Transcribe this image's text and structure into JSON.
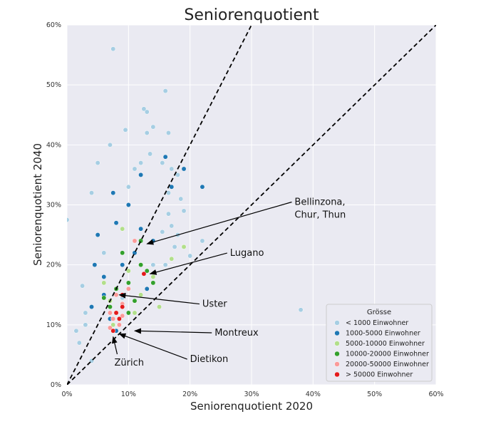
{
  "chart_data": {
    "type": "scatter",
    "title": "Seniorenquotient",
    "xlabel": "Seniorenquotient 2020",
    "ylabel": "Seniorenquotient 2040",
    "xlim": [
      0,
      0.6
    ],
    "ylim": [
      0,
      0.6
    ],
    "x_ticks": [
      "0%",
      "10%",
      "20%",
      "30%",
      "40%",
      "50%",
      "60%"
    ],
    "y_ticks": [
      "0%",
      "10%",
      "20%",
      "30%",
      "40%",
      "50%",
      "60%"
    ],
    "grid": true,
    "legend_position": "bottom-right",
    "legend_title": "Grösse",
    "reference_lines": [
      {
        "style": "dashed",
        "slope": 1
      },
      {
        "style": "dashed",
        "slope": 2
      }
    ],
    "series": [
      {
        "name": "< 1000 Einwohner",
        "color": "#a6cee3",
        "points": [
          [
            0.075,
            0.56
          ],
          [
            0.16,
            0.49
          ],
          [
            0.125,
            0.46
          ],
          [
            0.13,
            0.455
          ],
          [
            0.095,
            0.425
          ],
          [
            0.14,
            0.43
          ],
          [
            0.13,
            0.42
          ],
          [
            0.165,
            0.42
          ],
          [
            0.07,
            0.4
          ],
          [
            0.05,
            0.37
          ],
          [
            0.12,
            0.37
          ],
          [
            0.135,
            0.385
          ],
          [
            0.155,
            0.37
          ],
          [
            0.11,
            0.36
          ],
          [
            0.17,
            0.36
          ],
          [
            0.18,
            0.35
          ],
          [
            0.04,
            0.32
          ],
          [
            0.165,
            0.32
          ],
          [
            0.185,
            0.31
          ],
          [
            0.0,
            0.275
          ],
          [
            0.19,
            0.29
          ],
          [
            0.165,
            0.285
          ],
          [
            0.17,
            0.265
          ],
          [
            0.155,
            0.255
          ],
          [
            0.18,
            0.25
          ],
          [
            0.175,
            0.23
          ],
          [
            0.14,
            0.2
          ],
          [
            0.16,
            0.2
          ],
          [
            0.2,
            0.215
          ],
          [
            0.025,
            0.165
          ],
          [
            0.03,
            0.12
          ],
          [
            0.03,
            0.1
          ],
          [
            0.015,
            0.09
          ],
          [
            0.02,
            0.07
          ],
          [
            0.04,
            0.04
          ],
          [
            0.38,
            0.125
          ],
          [
            0.22,
            0.24
          ],
          [
            0.09,
            0.145
          ],
          [
            0.06,
            0.22
          ],
          [
            0.1,
            0.33
          ]
        ]
      },
      {
        "name": "1000-5000 Einwohner",
        "color": "#1f78b4",
        "points": [
          [
            0.22,
            0.33
          ],
          [
            0.17,
            0.33
          ],
          [
            0.19,
            0.36
          ],
          [
            0.16,
            0.38
          ],
          [
            0.12,
            0.35
          ],
          [
            0.075,
            0.32
          ],
          [
            0.05,
            0.25
          ],
          [
            0.045,
            0.2
          ],
          [
            0.06,
            0.15
          ],
          [
            0.07,
            0.11
          ],
          [
            0.08,
            0.09
          ],
          [
            0.1,
            0.3
          ],
          [
            0.12,
            0.26
          ],
          [
            0.14,
            0.24
          ],
          [
            0.09,
            0.2
          ],
          [
            0.06,
            0.18
          ],
          [
            0.04,
            0.13
          ],
          [
            0.08,
            0.27
          ],
          [
            0.11,
            0.22
          ],
          [
            0.13,
            0.16
          ]
        ]
      },
      {
        "name": "5000-10000 Einwohner",
        "color": "#b2df8a",
        "points": [
          [
            0.19,
            0.23
          ],
          [
            0.17,
            0.21
          ],
          [
            0.12,
            0.15
          ],
          [
            0.08,
            0.12
          ],
          [
            0.07,
            0.14
          ],
          [
            0.1,
            0.19
          ],
          [
            0.14,
            0.18
          ],
          [
            0.06,
            0.17
          ],
          [
            0.11,
            0.12
          ],
          [
            0.09,
            0.26
          ],
          [
            0.075,
            0.1
          ],
          [
            0.15,
            0.13
          ]
        ]
      },
      {
        "name": "10000-20000 Einwohner",
        "color": "#33a02c",
        "points": [
          [
            0.12,
            0.2
          ],
          [
            0.1,
            0.17
          ],
          [
            0.09,
            0.15
          ],
          [
            0.07,
            0.13
          ],
          [
            0.11,
            0.14
          ],
          [
            0.13,
            0.19
          ],
          [
            0.08,
            0.16
          ],
          [
            0.06,
            0.145
          ],
          [
            0.1,
            0.12
          ],
          [
            0.14,
            0.17
          ],
          [
            0.12,
            0.24
          ],
          [
            0.09,
            0.22
          ]
        ]
      },
      {
        "name": "20000-50000 Einwohner",
        "color": "#fb9a99",
        "points": [
          [
            0.08,
            0.15
          ],
          [
            0.07,
            0.12
          ],
          [
            0.09,
            0.135
          ],
          [
            0.075,
            0.11
          ],
          [
            0.085,
            0.1
          ],
          [
            0.11,
            0.24
          ],
          [
            0.1,
            0.16
          ],
          [
            0.07,
            0.095
          ],
          [
            0.09,
            0.115
          ]
        ]
      },
      {
        "name": "> 50000 Einwohner",
        "color": "#e31a1c",
        "points": [
          [
            0.125,
            0.185
          ],
          [
            0.09,
            0.15
          ],
          [
            0.08,
            0.12
          ],
          [
            0.085,
            0.11
          ],
          [
            0.075,
            0.09
          ],
          [
            0.09,
            0.13
          ]
        ]
      }
    ],
    "annotations": [
      {
        "lines": [
          "Bellinzona,",
          "Chur, Thun"
        ],
        "target": [
          0.13,
          0.235
        ],
        "text_at": [
          0.37,
          0.3
        ]
      },
      {
        "lines": [
          "Lugano"
        ],
        "target": [
          0.135,
          0.185
        ],
        "text_at": [
          0.265,
          0.215
        ]
      },
      {
        "lines": [
          "Uster"
        ],
        "target": [
          0.085,
          0.15
        ],
        "text_at": [
          0.22,
          0.13
        ]
      },
      {
        "lines": [
          "Montreux"
        ],
        "target": [
          0.11,
          0.09
        ],
        "text_at": [
          0.24,
          0.082
        ]
      },
      {
        "lines": [
          "Dietikon"
        ],
        "target": [
          0.085,
          0.085
        ],
        "text_at": [
          0.2,
          0.038
        ]
      },
      {
        "lines": [
          "Zürich"
        ],
        "target": [
          0.075,
          0.08
        ],
        "text_at": [
          0.077,
          0.032
        ]
      }
    ]
  }
}
